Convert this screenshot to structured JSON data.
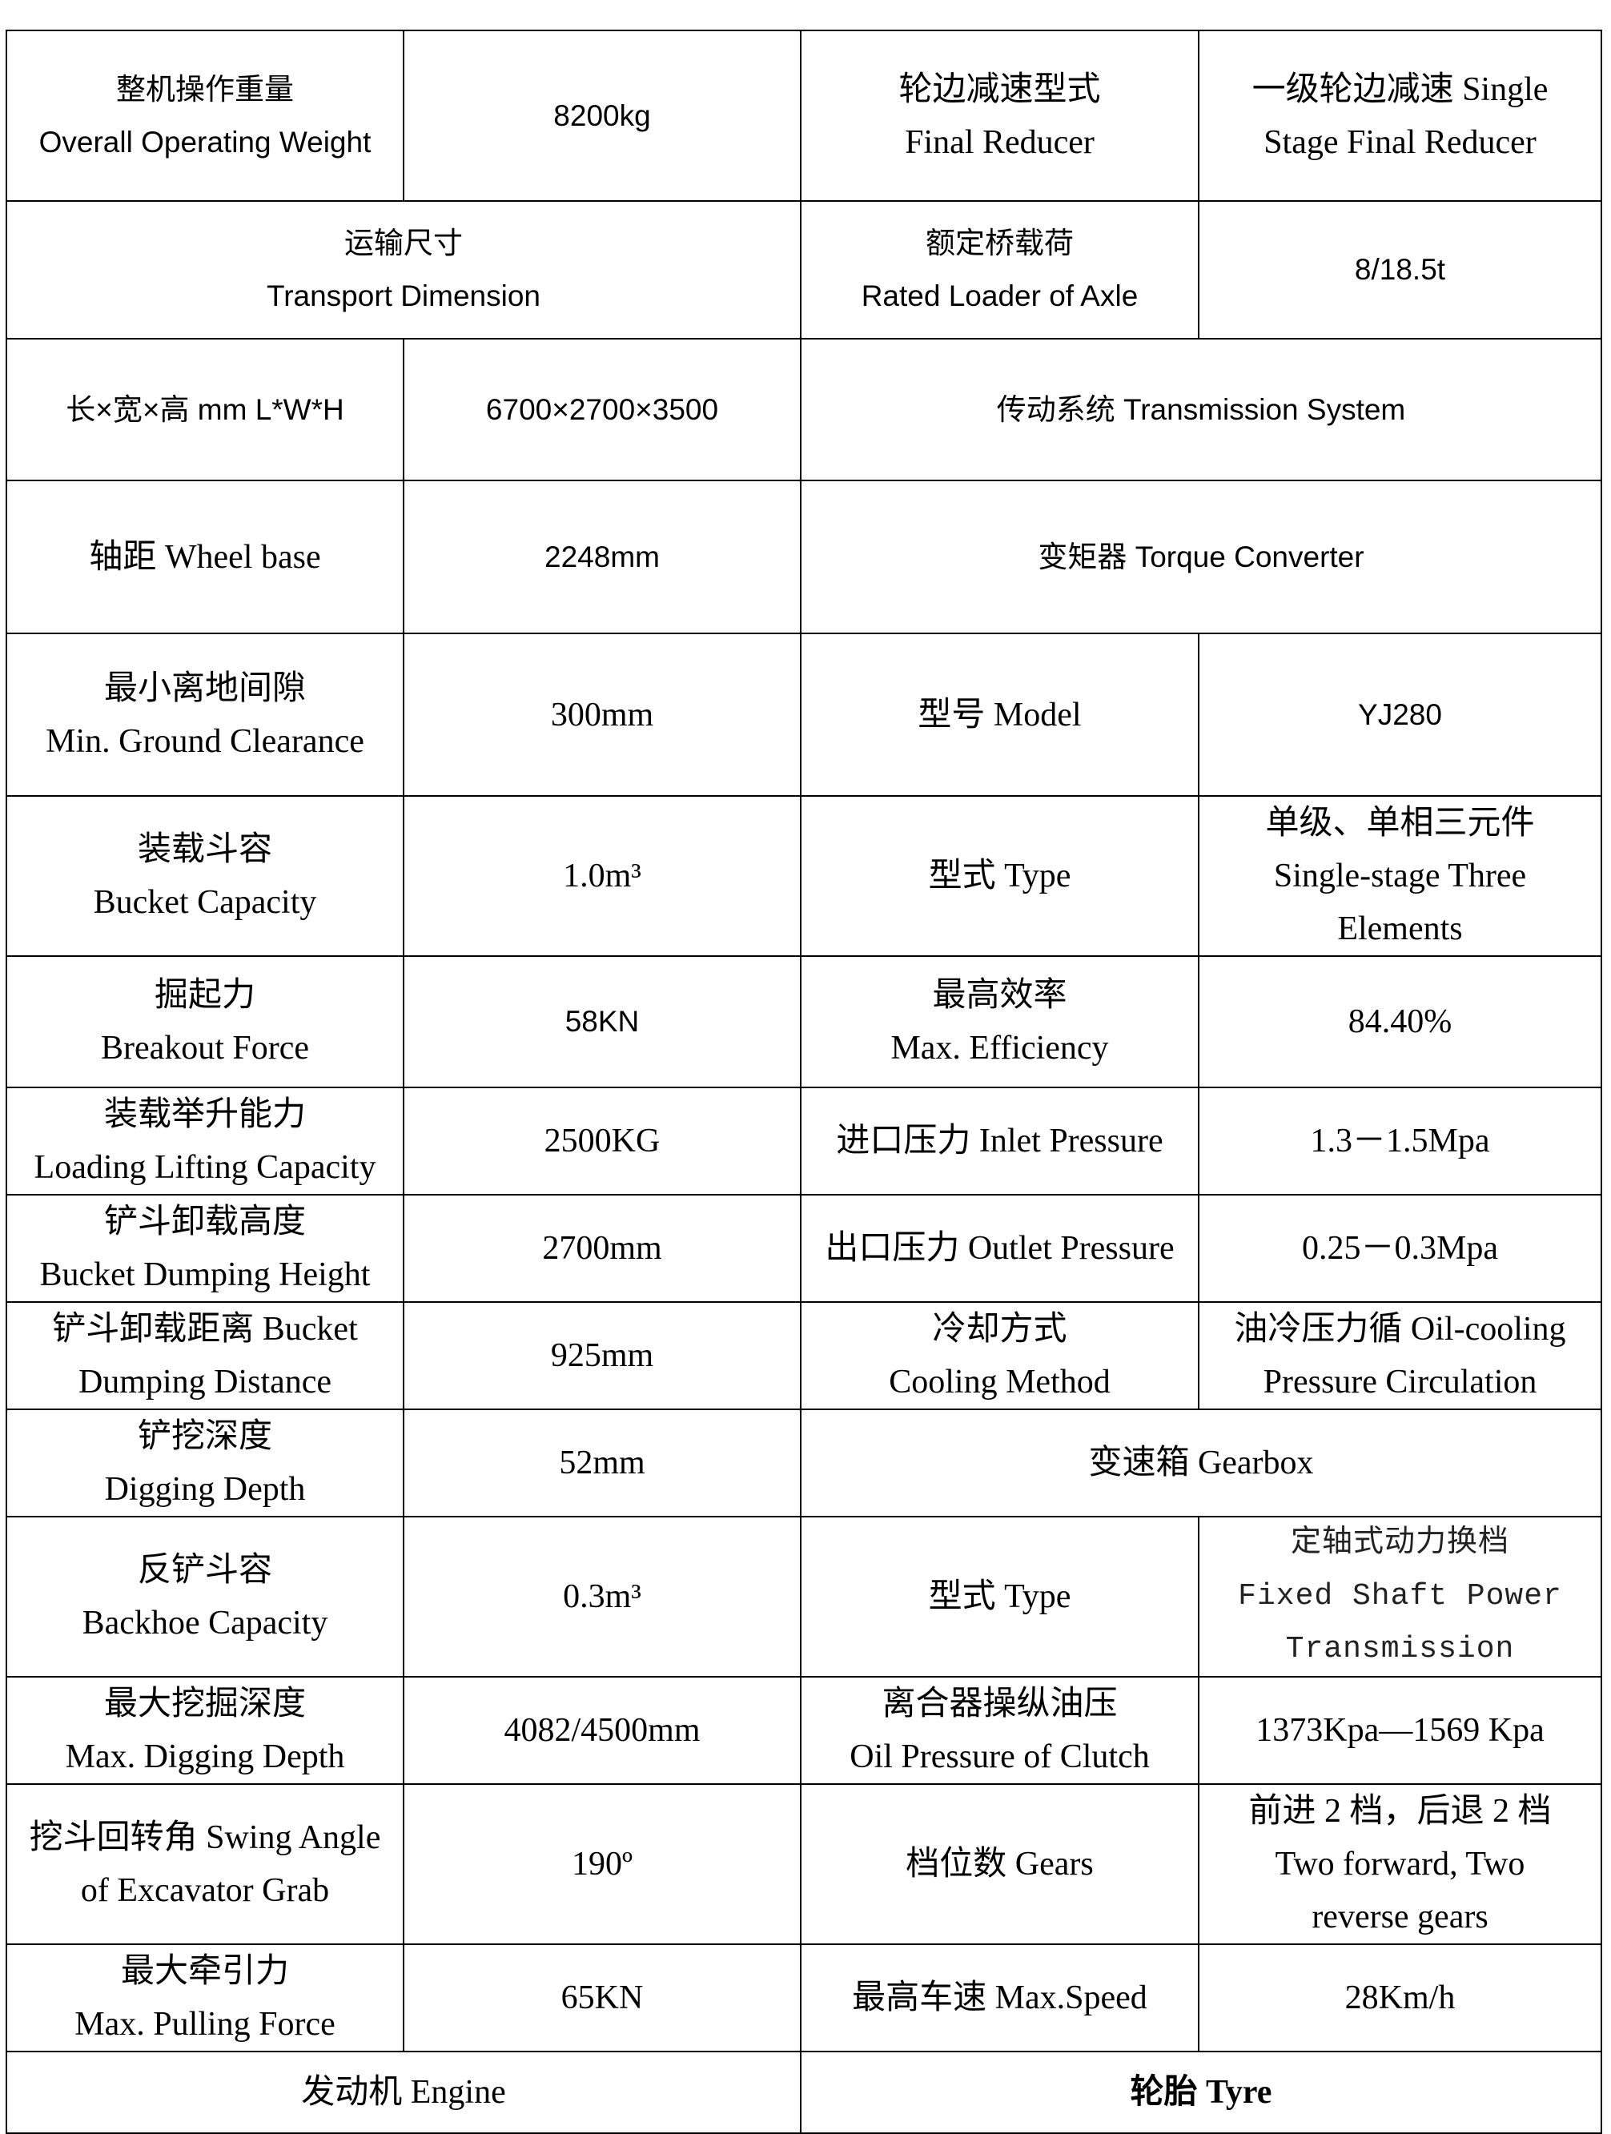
{
  "rows": [
    {
      "cells": [
        {
          "lines": [
            "整机操作重量",
            "Overall Operating Weight"
          ],
          "font": "sans"
        },
        {
          "lines": [
            "8200kg"
          ],
          "font": "sans"
        },
        {
          "lines": [
            "轮边减速型式",
            "Final Reducer"
          ],
          "font": "serif"
        },
        {
          "lines": [
            "一级轮边减速 Single",
            "Stage Final Reducer"
          ],
          "font": "serif"
        }
      ]
    },
    {
      "cells": [
        {
          "lines": [
            "运输尺寸",
            "Transport Dimension"
          ],
          "font": "sans",
          "span": 2
        },
        {
          "lines": [
            "额定桥载荷",
            "Rated Loader of Axle"
          ],
          "font": "sans"
        },
        {
          "lines": [
            "8/18.5t"
          ],
          "font": "sans"
        }
      ]
    },
    {
      "cells": [
        {
          "lines": [
            "长×宽×高 mm L*W*H"
          ],
          "font": "sans"
        },
        {
          "lines": [
            "6700×2700×3500"
          ],
          "font": "sans"
        },
        {
          "lines": [
            "传动系统 Transmission System"
          ],
          "font": "sans",
          "span": 2
        }
      ]
    },
    {
      "cells": [
        {
          "lines": [
            "轴距  Wheel base"
          ],
          "font": "serif"
        },
        {
          "lines": [
            "2248mm"
          ],
          "font": "sans"
        },
        {
          "lines": [
            "变矩器 Torque Converter"
          ],
          "font": "sans",
          "span": 2
        }
      ]
    },
    {
      "cells": [
        {
          "lines": [
            "最小离地间隙",
            "Min. Ground Clearance"
          ],
          "font": "serif"
        },
        {
          "lines": [
            "300mm"
          ],
          "font": "serif"
        },
        {
          "lines": [
            "型号 Model"
          ],
          "font": "serif"
        },
        {
          "lines": [
            "YJ280"
          ],
          "font": "sans"
        }
      ]
    },
    {
      "cells": [
        {
          "lines": [
            "装载斗容",
            "Bucket Capacity"
          ],
          "font": "serif"
        },
        {
          "lines": [
            "1.0m³"
          ],
          "font": "serif"
        },
        {
          "lines": [
            "型式 Type"
          ],
          "font": "serif"
        },
        {
          "lines": [
            "单级、单相三元件",
            "Single-stage Three",
            "Elements"
          ],
          "font": "serif"
        }
      ]
    },
    {
      "cells": [
        {
          "lines": [
            "掘起力",
            "Breakout Force"
          ],
          "font": "serif"
        },
        {
          "lines": [
            "58KN"
          ],
          "font": "sans"
        },
        {
          "lines": [
            "最高效率",
            "Max. Efficiency"
          ],
          "font": "serif"
        },
        {
          "lines": [
            "84.40%"
          ],
          "font": "serif"
        }
      ]
    },
    {
      "cells": [
        {
          "lines": [
            "装载举升能力",
            "Loading Lifting Capacity"
          ],
          "font": "serif"
        },
        {
          "lines": [
            "2500KG"
          ],
          "font": "serif"
        },
        {
          "lines": [
            "进口压力 Inlet Pressure"
          ],
          "font": "serif"
        },
        {
          "lines": [
            "1.3－1.5Mpa"
          ],
          "font": "serif"
        }
      ]
    },
    {
      "cells": [
        {
          "lines": [
            "铲斗卸载高度",
            "Bucket Dumping Height"
          ],
          "font": "serif"
        },
        {
          "lines": [
            "2700mm"
          ],
          "font": "serif"
        },
        {
          "lines": [
            "出口压力 Outlet Pressure"
          ],
          "font": "serif"
        },
        {
          "lines": [
            "0.25－0.3Mpa"
          ],
          "font": "serif"
        }
      ]
    },
    {
      "cells": [
        {
          "lines": [
            "铲斗卸载距离 Bucket",
            "Dumping Distance"
          ],
          "font": "serif"
        },
        {
          "lines": [
            "925mm"
          ],
          "font": "serif"
        },
        {
          "lines": [
            "冷却方式",
            "Cooling Method"
          ],
          "font": "serif"
        },
        {
          "lines": [
            "油冷压力循 Oil-cooling",
            "Pressure Circulation"
          ],
          "font": "serif"
        }
      ]
    },
    {
      "cells": [
        {
          "lines": [
            "铲挖深度",
            "Digging Depth"
          ],
          "font": "serif"
        },
        {
          "lines": [
            "52mm"
          ],
          "font": "serif"
        },
        {
          "lines": [
            "变速箱 Gearbox"
          ],
          "font": "serif",
          "span": 2
        }
      ]
    },
    {
      "cells": [
        {
          "lines": [
            "反铲斗容",
            "Backhoe Capacity"
          ],
          "font": "serif"
        },
        {
          "lines": [
            "0.3m³"
          ],
          "font": "serif"
        },
        {
          "lines": [
            "型式 Type"
          ],
          "font": "serif"
        },
        {
          "lines": [
            "定轴式动力换档",
            "Fixed Shaft Power",
            "Transmission"
          ],
          "font": "mono"
        }
      ]
    },
    {
      "cells": [
        {
          "lines": [
            "最大挖掘深度",
            "Max. Digging Depth"
          ],
          "font": "serif"
        },
        {
          "lines": [
            "4082/4500mm"
          ],
          "font": "serif"
        },
        {
          "lines": [
            "离合器操纵油压",
            "Oil Pressure of Clutch"
          ],
          "font": "serif"
        },
        {
          "lines": [
            "1373Kpa—1569 Kpa"
          ],
          "font": "serif"
        }
      ]
    },
    {
      "cells": [
        {
          "lines": [
            "挖斗回转角 Swing Angle",
            "of Excavator Grab"
          ],
          "font": "serif"
        },
        {
          "lines": [
            "190º"
          ],
          "font": "serif"
        },
        {
          "lines": [
            "档位数 Gears"
          ],
          "font": "serif"
        },
        {
          "lines": [
            "前进 2 档，后退 2 档",
            "Two forward, Two",
            "reverse gears"
          ],
          "font": "serif"
        }
      ]
    },
    {
      "cells": [
        {
          "lines": [
            "最大牵引力",
            "Max. Pulling Force"
          ],
          "font": "serif"
        },
        {
          "lines": [
            "65KN"
          ],
          "font": "serif"
        },
        {
          "lines": [
            "最高车速 Max.Speed"
          ],
          "font": "serif"
        },
        {
          "lines": [
            "28Km/h"
          ],
          "font": "serif"
        }
      ]
    },
    {
      "cells": [
        {
          "lines": [
            "发动机 Engine"
          ],
          "font": "serif",
          "span": 2
        },
        {
          "lines": [
            "轮胎 Tyre"
          ],
          "font": "serif",
          "span": 2,
          "bold": true
        }
      ]
    }
  ]
}
